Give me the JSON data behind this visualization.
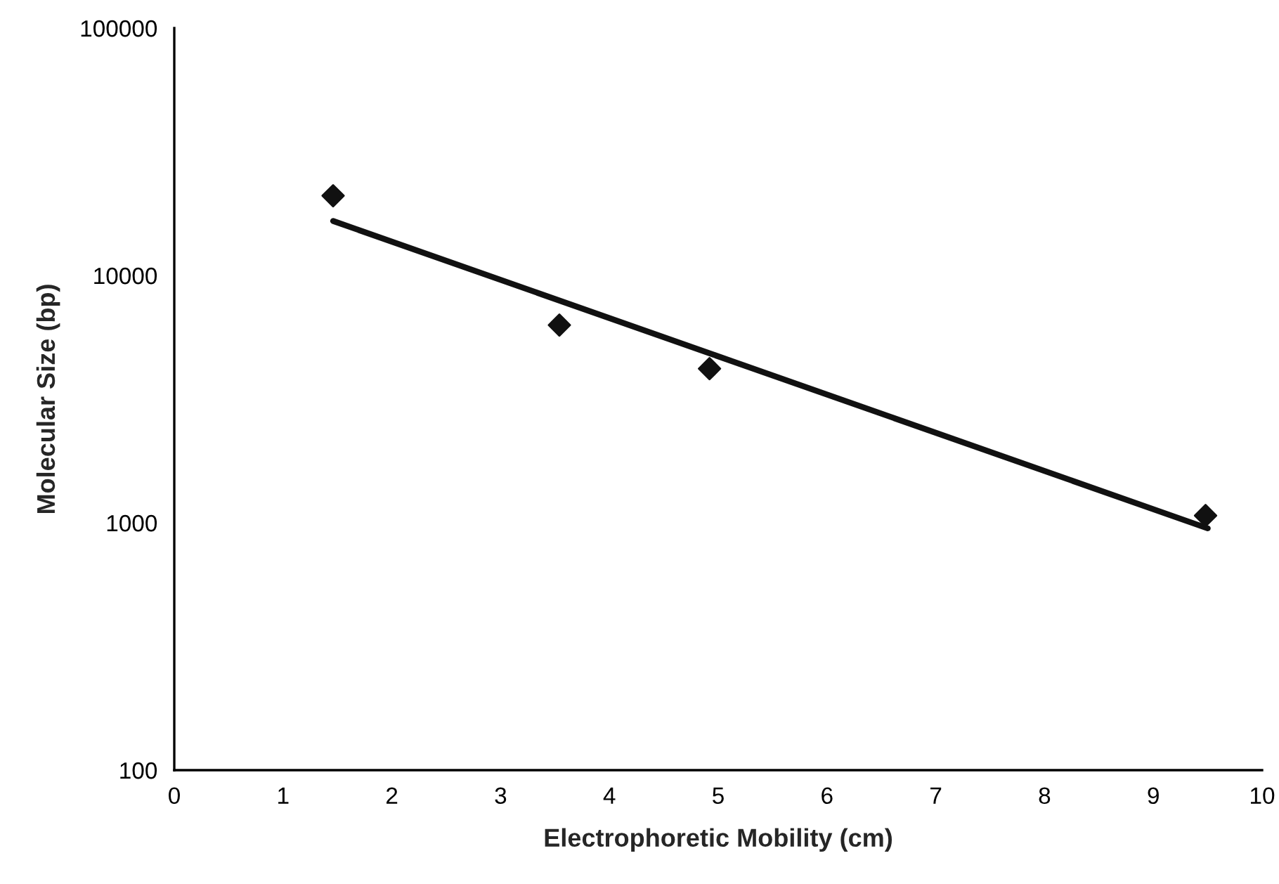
{
  "chart_data": {
    "type": "scatter",
    "xlabel": "Electrophoretic Mobility (cm)",
    "ylabel": "Molecular Size (bp)",
    "log": "y",
    "xlim": [
      0,
      10
    ],
    "xticks": [
      0,
      1,
      2,
      3,
      4,
      5,
      6,
      7,
      8,
      9,
      10
    ],
    "ylim": [
      100,
      100000
    ],
    "yticks": [
      100,
      1000,
      10000,
      100000
    ],
    "grid": false,
    "legend": false,
    "series": [
      {
        "type": "scatter",
        "color": "#111111",
        "marker": "diamond",
        "x": [
          1.46,
          3.54,
          4.92,
          9.48
        ],
        "values": [
          21000,
          6300,
          4200,
          1070
        ]
      },
      {
        "type": "line",
        "color": "#111111",
        "marker": "none",
        "line_style": "solid",
        "x": [
          1.46,
          9.5
        ],
        "values": [
          16600,
          950
        ]
      }
    ]
  }
}
